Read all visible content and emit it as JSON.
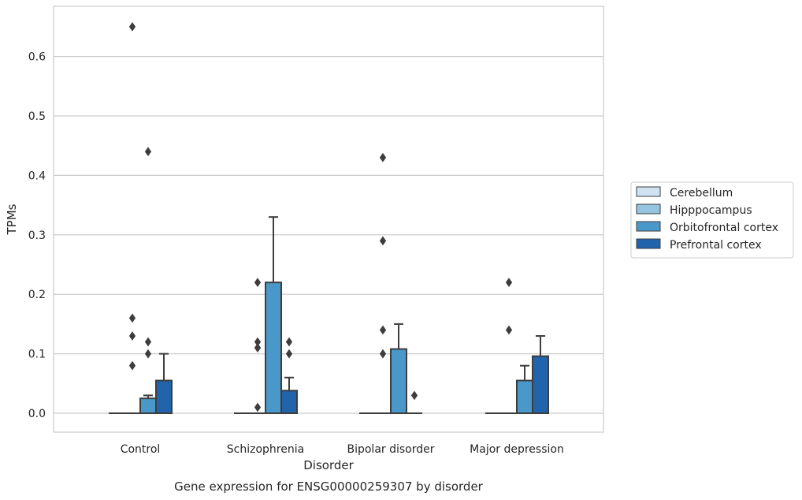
{
  "chart_data": {
    "type": "bar",
    "title": "",
    "xlabel": "Disorder",
    "ylabel": "TPMs",
    "caption": "Gene expression for ENSG00000259307 by disorder",
    "categories": [
      "Control",
      "Schizophrenia",
      "Bipolar disorder",
      "Major depression"
    ],
    "ylim": [
      -0.032,
      0.685
    ],
    "yticks": [
      "0.0",
      "0.1",
      "0.2",
      "0.3",
      "0.4",
      "0.5",
      "0.6"
    ],
    "grid": "horizontal",
    "legend_position": "right",
    "series": [
      {
        "name": "Cerebellum",
        "color": "#d0e1f2",
        "values": [
          0.0,
          0.0,
          0.0,
          0.0
        ],
        "error_upper": [
          null,
          null,
          null,
          null
        ],
        "outliers": [
          [],
          [],
          [],
          []
        ]
      },
      {
        "name": "Hipppocampus",
        "color": "#94c4df",
        "values": [
          0.0,
          0.0,
          0.0,
          0.0
        ],
        "error_upper": [
          null,
          null,
          null,
          null
        ],
        "outliers": [
          [
            0.13,
            0.08,
            0.65,
            0.16
          ],
          [
            0.22,
            0.11,
            0.01,
            0.11,
            0.12
          ],
          [
            0.14,
            0.1,
            0.43,
            0.29
          ],
          [
            0.22,
            0.14
          ]
        ]
      },
      {
        "name": "Orbitofrontal cortex",
        "color": "#4a98c9",
        "values": [
          0.025,
          0.22,
          0.108,
          0.055
        ],
        "error_upper": [
          0.03,
          0.33,
          0.15,
          0.08
        ],
        "outliers": [
          [
            0.44,
            0.12,
            0.1
          ],
          [],
          [],
          []
        ]
      },
      {
        "name": "Prefrontal cortex",
        "color": "#2164ab",
        "values": [
          0.055,
          0.038,
          0.0,
          0.096
        ],
        "error_upper": [
          0.1,
          0.06,
          null,
          0.13
        ],
        "outliers": [
          [],
          [
            0.12,
            0.1
          ],
          [
            0.03
          ],
          []
        ]
      }
    ]
  }
}
